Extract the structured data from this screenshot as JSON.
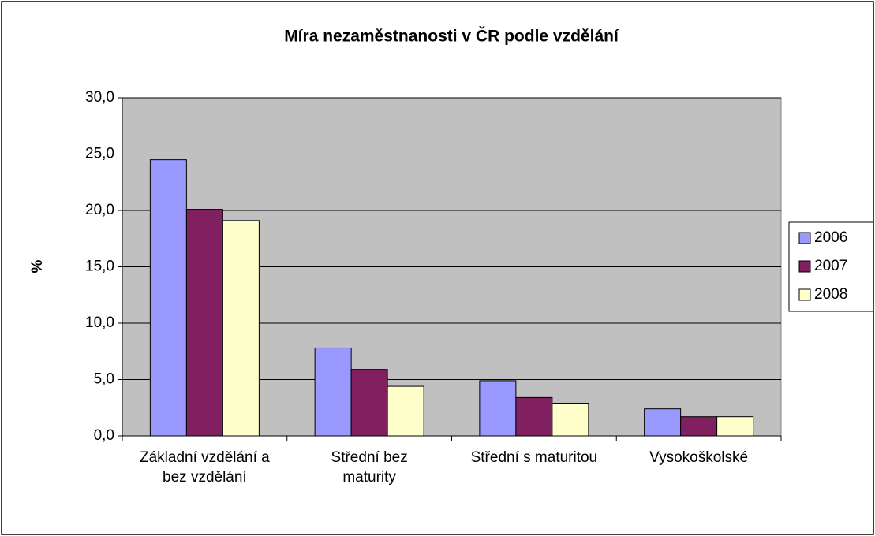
{
  "chart_data": {
    "type": "bar",
    "title": "Míra nezaměstnanosti v ČR podle vzdělání",
    "y_label": "%",
    "categories": [
      "Základní vzdělání a bez vzdělání",
      "Střední bez maturity",
      "Střední s maturitou",
      "Vysokoškolské"
    ],
    "series": [
      {
        "name": "2006",
        "color": "#9999ff",
        "values": [
          24.5,
          7.8,
          4.9,
          2.4
        ]
      },
      {
        "name": "2007",
        "color": "#802060",
        "values": [
          20.1,
          5.9,
          3.4,
          1.7
        ]
      },
      {
        "name": "2008",
        "color": "#ffffcc",
        "values": [
          19.1,
          4.4,
          2.9,
          1.7
        ]
      }
    ],
    "ylim": [
      0,
      30
    ],
    "yticks": [
      {
        "value": 0,
        "label": "0,0"
      },
      {
        "value": 5,
        "label": "5,0"
      },
      {
        "value": 10,
        "label": "10,0"
      },
      {
        "value": 15,
        "label": "15,0"
      },
      {
        "value": 20,
        "label": "20,0"
      },
      {
        "value": 25,
        "label": "25,0"
      },
      {
        "value": 30,
        "label": "30,0"
      }
    ],
    "grid": true,
    "legend": "right"
  }
}
